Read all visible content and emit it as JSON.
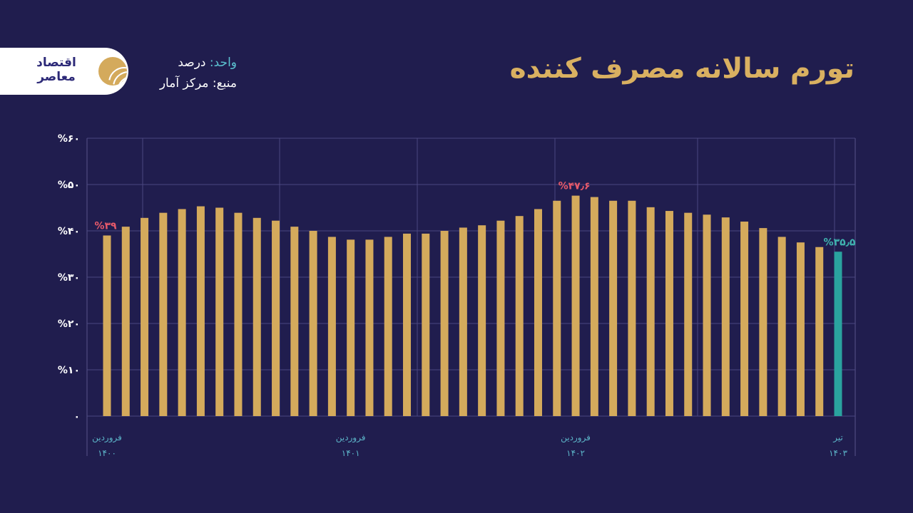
{
  "header": {
    "title": "تورم سالانه مصرف کننده",
    "unit_key": "واحد:",
    "unit_value": "درصد",
    "source_key": "منبع:",
    "source_value": "مرکز آمار",
    "logo_text": "اقتصاد معاصر"
  },
  "colors": {
    "background": "#201d4e",
    "bar": "#d4aa5c",
    "highlight_bar": "#2aa39f",
    "peak_label": "#e85a6a",
    "last_label": "#3fb4b0",
    "x_label": "#5cb4c8",
    "title": "#d9b061"
  },
  "chart_data": {
    "type": "bar",
    "title": "تورم سالانه مصرف کننده",
    "ylabel": "",
    "xlabel": "",
    "ylim": [
      0,
      60
    ],
    "y_ticks": [
      {
        "value": 0,
        "label": "۰"
      },
      {
        "value": 10,
        "label": "%۱۰"
      },
      {
        "value": 20,
        "label": "%۲۰"
      },
      {
        "value": 30,
        "label": "%۳۰"
      },
      {
        "value": 40,
        "label": "%۴۰"
      },
      {
        "value": 50,
        "label": "%۵۰"
      },
      {
        "value": 60,
        "label": "%۶۰"
      }
    ],
    "grid": true,
    "values": [
      39.0,
      40.9,
      42.8,
      43.9,
      44.7,
      45.3,
      45.0,
      43.9,
      42.8,
      42.2,
      40.9,
      40.0,
      38.7,
      38.1,
      38.1,
      38.7,
      39.4,
      39.4,
      40.0,
      40.7,
      41.2,
      42.2,
      43.2,
      44.7,
      46.5,
      47.6,
      47.3,
      46.5,
      46.5,
      45.1,
      44.3,
      43.9,
      43.5,
      42.9,
      42.0,
      40.6,
      38.7,
      37.5,
      36.5,
      35.5
    ],
    "x_labels": [
      {
        "index": 0,
        "month": "فروردین",
        "year": "۱۴۰۰"
      },
      {
        "index": 13,
        "month": "فروردین",
        "year": "۱۴۰۱"
      },
      {
        "index": 25,
        "month": "فروردین",
        "year": "۱۴۰۲"
      },
      {
        "index": 39,
        "month": "تیر",
        "year": "۱۴۰۳"
      }
    ],
    "annotations": [
      {
        "index": 0,
        "label": "%۳۹",
        "color": "#e85a6a"
      },
      {
        "index": 25,
        "label": "%۴۷٫۶",
        "color": "#e85a6a"
      },
      {
        "index": 39,
        "label": "%۳۵٫۵",
        "color": "#3fb4b0"
      }
    ],
    "highlight_index": 39
  }
}
